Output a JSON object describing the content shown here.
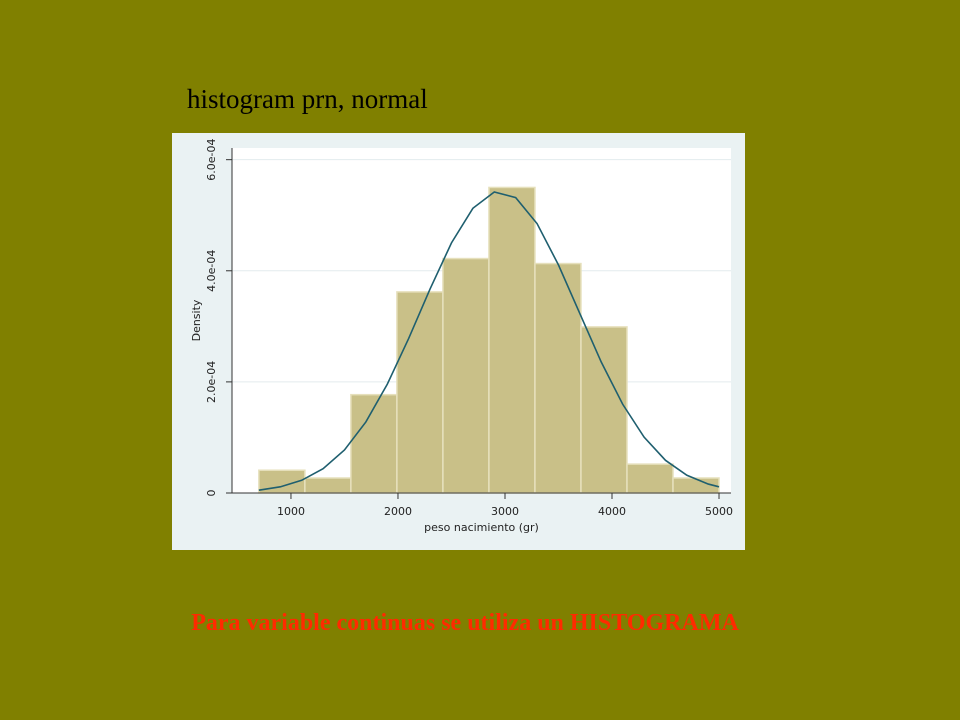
{
  "title": "histogram prn, normal",
  "chart_data": {
    "type": "histogram",
    "xlabel": "peso nacimiento (gr)",
    "ylabel": "Density",
    "bins": [
      700,
      1130,
      1560,
      1990,
      2420,
      2850,
      3280,
      3710,
      4140,
      4570,
      5000
    ],
    "values": [
      4.1e-05,
      2.7e-05,
      0.000177,
      0.000362,
      0.000422,
      0.00055,
      0.000413,
      0.000299,
      5.2e-05,
      2.7e-05
    ],
    "color": "#c9c088",
    "curve": {
      "color": "#1f5f6f",
      "x": [
        700,
        900,
        1100,
        1300,
        1500,
        1700,
        1900,
        2100,
        2300,
        2500,
        2700,
        2900,
        3100,
        3300,
        3500,
        3700,
        3900,
        4100,
        4300,
        4500,
        4700,
        4900,
        5000
      ],
      "values": [
        5e-06,
        1.11e-05,
        2.29e-05,
        4.37e-05,
        7.75e-05,
        0.0001279,
        0.0001958,
        0.0002782,
        0.0003673,
        0.0004502,
        0.0005125,
        0.0005418,
        0.0005318,
        0.0004848,
        0.0004104,
        0.0003227,
        0.0002355,
        0.0001597,
        0.0001005,
        5.88e-05,
        3.19e-05,
        1.61e-05,
        1.11e-05
      ]
    },
    "xlim": [
      449,
      5112
    ],
    "ylim": [
      0,
      0.000621
    ],
    "xticks": [
      1000,
      2000,
      3000,
      4000,
      5000
    ],
    "yticks": [
      0,
      {
        "value": 0.0002,
        "label": "2.0e-04"
      },
      {
        "value": 0.0004,
        "label": "4.0e-04"
      },
      {
        "value": 0.0006,
        "label": "6.0e-04"
      }
    ],
    "grid": true
  },
  "caption": "Para variable continuas se utiliza un HISTOGRAMA"
}
